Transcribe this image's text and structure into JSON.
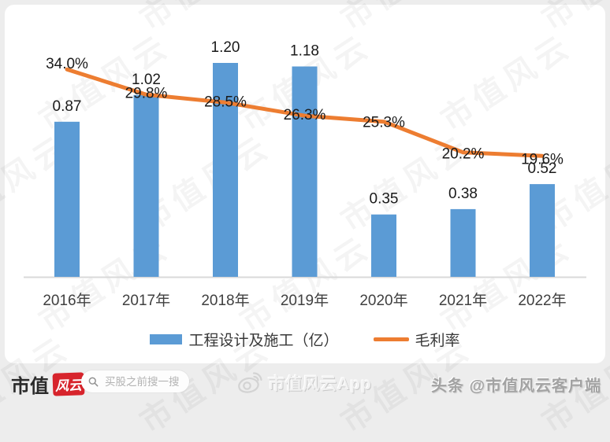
{
  "watermark": {
    "text": "市值风云"
  },
  "chart_data": {
    "type": "bar",
    "subtype": "bar-line-combo",
    "title": "",
    "xlabel": "",
    "ylabel": "",
    "categories": [
      "2016年",
      "2017年",
      "2018年",
      "2019年",
      "2020年",
      "2021年",
      "2022年"
    ],
    "series": [
      {
        "name": "工程设计及施工（亿）",
        "type": "bar",
        "axis": "left",
        "color": "#5B9BD5",
        "values": [
          0.87,
          1.02,
          1.2,
          1.18,
          0.35,
          0.38,
          0.52
        ],
        "labels": [
          "0.87",
          "1.02",
          "1.20",
          "1.18",
          "0.35",
          "0.38",
          "0.52"
        ]
      },
      {
        "name": "毛利率",
        "type": "line",
        "axis": "right",
        "color": "#ED7D31",
        "values": [
          34.0,
          29.8,
          28.5,
          26.3,
          25.3,
          20.2,
          19.6
        ],
        "labels": [
          "34.0%",
          "29.8%",
          "28.5%",
          "26.3%",
          "25.3%",
          "20.2%",
          "19.6%"
        ]
      }
    ],
    "ylim_left": [
      0,
      1.47
    ],
    "ylim_right": [
      0,
      43
    ],
    "axes_hidden": true,
    "grid": false,
    "legend_position": "bottom",
    "axis_line_color": "#D9D9D9",
    "label_color": "#1a1a1a",
    "tick_color": "#404040"
  },
  "footer": {
    "logo_text": "市值",
    "logo_badge": "风云",
    "search_placeholder": "买股之前搜一搜",
    "app_watermark": "市值风云App",
    "byline": "头条 @市值风云客户端"
  }
}
